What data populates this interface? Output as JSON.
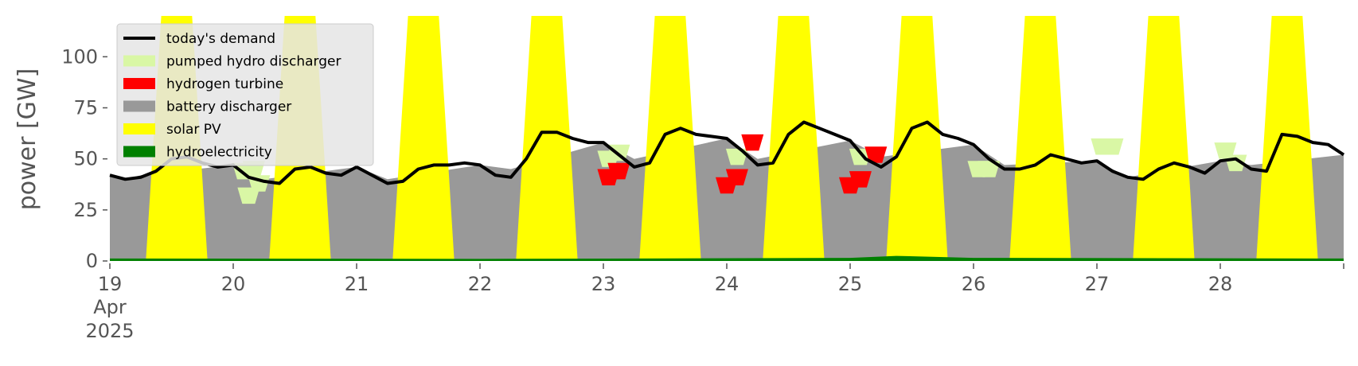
{
  "chart_data": {
    "type": "area",
    "title": "",
    "xlabel": "",
    "ylabel": "power [GW]",
    "ylim": [
      0,
      120
    ],
    "xlim": [
      "2025-04-19 00:00",
      "2025-04-29 00:00"
    ],
    "y_ticks": [
      "0",
      "25",
      "50",
      "75",
      "100"
    ],
    "x_ticks": [
      {
        "label": "19",
        "sub": [
          "Apr",
          "2025"
        ],
        "day": 0
      },
      {
        "label": "20",
        "day": 1
      },
      {
        "label": "21",
        "day": 2
      },
      {
        "label": "22",
        "day": 3
      },
      {
        "label": "23",
        "day": 4
      },
      {
        "label": "24",
        "day": 5
      },
      {
        "label": "25",
        "day": 6
      },
      {
        "label": "26",
        "day": 7
      },
      {
        "label": "27",
        "day": 8
      },
      {
        "label": "28",
        "day": 9
      }
    ],
    "grid": false,
    "legend_position": "top-left",
    "legend": [
      {
        "label": "today's demand",
        "kind": "line",
        "color": "#000000"
      },
      {
        "label": "pumped hydro discharger",
        "kind": "patch",
        "color": "#d9f7a5"
      },
      {
        "label": "hydrogen turbine",
        "kind": "patch",
        "color": "#ff0000"
      },
      {
        "label": "battery discharger",
        "kind": "patch",
        "color": "#999999"
      },
      {
        "label": "solar PV",
        "kind": "patch",
        "color": "#ffff00"
      },
      {
        "label": "hydroelectricity",
        "kind": "patch",
        "color": "#008000"
      }
    ],
    "series": [
      {
        "name": "today's demand",
        "color": "#000000",
        "x": [
          "2025-04-19 00:00",
          "2025-04-19 03:00",
          "2025-04-19 06:00",
          "2025-04-19 09:00",
          "2025-04-19 12:00",
          "2025-04-19 15:00",
          "2025-04-19 18:00",
          "2025-04-19 21:00",
          "2025-04-20 00:00",
          "2025-04-20 03:00",
          "2025-04-20 06:00",
          "2025-04-20 09:00",
          "2025-04-20 12:00",
          "2025-04-20 15:00",
          "2025-04-20 18:00",
          "2025-04-20 21:00",
          "2025-04-21 00:00",
          "2025-04-21 03:00",
          "2025-04-21 06:00",
          "2025-04-21 09:00",
          "2025-04-21 12:00",
          "2025-04-21 15:00",
          "2025-04-21 18:00",
          "2025-04-21 21:00",
          "2025-04-22 00:00",
          "2025-04-22 03:00",
          "2025-04-22 06:00",
          "2025-04-22 09:00",
          "2025-04-22 12:00",
          "2025-04-22 15:00",
          "2025-04-22 18:00",
          "2025-04-22 21:00",
          "2025-04-23 00:00",
          "2025-04-23 03:00",
          "2025-04-23 06:00",
          "2025-04-23 09:00",
          "2025-04-23 12:00",
          "2025-04-23 15:00",
          "2025-04-23 18:00",
          "2025-04-23 21:00",
          "2025-04-24 00:00",
          "2025-04-24 03:00",
          "2025-04-24 06:00",
          "2025-04-24 09:00",
          "2025-04-24 12:00",
          "2025-04-24 15:00",
          "2025-04-24 18:00",
          "2025-04-24 21:00",
          "2025-04-25 00:00",
          "2025-04-25 03:00",
          "2025-04-25 06:00",
          "2025-04-25 09:00",
          "2025-04-25 12:00",
          "2025-04-25 15:00",
          "2025-04-25 18:00",
          "2025-04-25 21:00",
          "2025-04-26 00:00",
          "2025-04-26 03:00",
          "2025-04-26 06:00",
          "2025-04-26 09:00",
          "2025-04-26 12:00",
          "2025-04-26 15:00",
          "2025-04-26 18:00",
          "2025-04-26 21:00",
          "2025-04-27 00:00",
          "2025-04-27 03:00",
          "2025-04-27 06:00",
          "2025-04-27 09:00",
          "2025-04-27 12:00",
          "2025-04-27 15:00",
          "2025-04-27 18:00",
          "2025-04-27 21:00",
          "2025-04-28 00:00",
          "2025-04-28 03:00",
          "2025-04-28 06:00",
          "2025-04-28 09:00",
          "2025-04-28 12:00",
          "2025-04-28 15:00",
          "2025-04-28 18:00",
          "2025-04-28 21:00",
          "2025-04-29 00:00"
        ],
        "y": [
          42,
          40,
          41,
          44,
          50,
          51,
          48,
          46,
          47,
          41,
          39,
          38,
          45,
          46,
          43,
          42,
          46,
          42,
          38,
          39,
          45,
          47,
          47,
          48,
          47,
          42,
          41,
          50,
          63,
          63,
          60,
          58,
          58,
          52,
          46,
          48,
          62,
          65,
          62,
          61,
          60,
          54,
          47,
          48,
          62,
          68,
          65,
          62,
          59,
          50,
          46,
          51,
          65,
          68,
          62,
          60,
          57,
          50,
          45,
          45,
          47,
          52,
          50,
          48,
          49,
          44,
          41,
          40,
          45,
          48,
          46,
          43,
          49,
          50,
          45,
          44,
          62,
          61,
          58,
          57,
          52
        ]
      },
      {
        "name": "solar PV",
        "color": "#ffff00",
        "x": [
          "2025-04-19 07:00",
          "2025-04-19 08:00",
          "2025-04-19 10:00",
          "2025-04-19 16:00",
          "2025-04-19 18:00",
          "2025-04-19 19:00",
          "2025-04-20 07:00",
          "2025-04-20 08:00",
          "2025-04-20 10:00",
          "2025-04-20 16:00",
          "2025-04-20 18:00",
          "2025-04-20 19:00",
          "2025-04-21 07:00",
          "2025-04-21 08:00",
          "2025-04-21 10:00",
          "2025-04-21 16:00",
          "2025-04-21 18:00",
          "2025-04-21 19:00",
          "2025-04-22 07:00",
          "2025-04-22 08:00",
          "2025-04-22 10:00",
          "2025-04-22 16:00",
          "2025-04-22 18:00",
          "2025-04-22 19:00",
          "2025-04-23 07:00",
          "2025-04-23 08:00",
          "2025-04-23 10:00",
          "2025-04-23 16:00",
          "2025-04-23 18:00",
          "2025-04-23 19:00",
          "2025-04-24 07:00",
          "2025-04-24 08:00",
          "2025-04-24 10:00",
          "2025-04-24 16:00",
          "2025-04-24 18:00",
          "2025-04-24 19:00",
          "2025-04-25 07:00",
          "2025-04-25 08:00",
          "2025-04-25 10:00",
          "2025-04-25 16:00",
          "2025-04-25 18:00",
          "2025-04-25 19:00",
          "2025-04-26 07:00",
          "2025-04-26 08:00",
          "2025-04-26 10:00",
          "2025-04-26 16:00",
          "2025-04-26 18:00",
          "2025-04-26 19:00",
          "2025-04-27 07:00",
          "2025-04-27 08:00",
          "2025-04-27 10:00",
          "2025-04-27 16:00",
          "2025-04-27 18:00",
          "2025-04-27 19:00",
          "2025-04-28 07:00",
          "2025-04-28 08:00",
          "2025-04-28 10:00",
          "2025-04-28 16:00",
          "2025-04-28 18:00",
          "2025-04-28 19:00"
        ],
        "y": [
          0,
          40,
          120,
          120,
          40,
          0,
          0,
          40,
          120,
          120,
          40,
          0,
          0,
          40,
          120,
          120,
          40,
          0,
          0,
          40,
          120,
          120,
          40,
          0,
          0,
          40,
          120,
          120,
          40,
          0,
          0,
          40,
          120,
          120,
          40,
          0,
          0,
          40,
          120,
          120,
          40,
          0,
          0,
          40,
          120,
          120,
          40,
          0,
          0,
          40,
          120,
          120,
          40,
          0,
          0,
          40,
          120,
          120,
          40,
          0
        ]
      },
      {
        "name": "pumped hydro discharger",
        "color": "#d9f7a5",
        "x": [
          "2025-04-20 02:00",
          "2025-04-20 03:00",
          "2025-04-20 04:00",
          "2025-04-20 05:00",
          "2025-04-23 01:00",
          "2025-04-23 03:00",
          "2025-04-24 02:00",
          "2025-04-25 02:00",
          "2025-04-26 01:00",
          "2025-04-26 03:00",
          "2025-04-27 01:00",
          "2025-04-27 03:00",
          "2025-04-28 01:00",
          "2025-04-28 03:00"
        ],
        "y": [
          40,
          28,
          41,
          34,
          46,
          49,
          47,
          47,
          41,
          41,
          52,
          52,
          50,
          44
        ]
      },
      {
        "name": "hydrogen turbine",
        "color": "#ff0000",
        "x": [
          "2025-04-23 01:00",
          "2025-04-23 03:00",
          "2025-04-24 00:00",
          "2025-04-24 02:00",
          "2025-04-24 05:00",
          "2025-04-25 00:00",
          "2025-04-25 02:00",
          "2025-04-25 05:00"
        ],
        "y": [
          37,
          40,
          33,
          37,
          54,
          33,
          36,
          48
        ]
      },
      {
        "name": "battery discharger",
        "color": "#999999",
        "x": [
          "2025-04-19 00:00",
          "2025-04-19 03:00",
          "2025-04-19 06:00",
          "2025-04-20 00:00",
          "2025-04-20 06:00",
          "2025-04-21 00:00",
          "2025-04-21 06:00",
          "2025-04-22 00:00",
          "2025-04-22 06:00",
          "2025-04-23 00:00",
          "2025-04-23 06:00",
          "2025-04-24 00:00",
          "2025-04-24 06:00",
          "2025-04-25 00:00",
          "2025-04-25 06:00",
          "2025-04-26 00:00",
          "2025-04-26 06:00",
          "2025-04-27 00:00",
          "2025-04-27 06:00",
          "2025-04-28 00:00",
          "2025-04-28 06:00",
          "2025-04-29 00:00"
        ],
        "y": [
          42,
          40,
          42,
          47,
          40,
          46,
          40,
          47,
          45,
          58,
          50,
          60,
          50,
          59,
          51,
          57,
          47,
          49,
          41,
          49,
          47,
          52
        ]
      },
      {
        "name": "hydroelectricity",
        "color": "#008000",
        "x": [
          "2025-04-19 00:00",
          "2025-04-22 00:00",
          "2025-04-25 00:00",
          "2025-04-25 09:00",
          "2025-04-26 00:00",
          "2025-04-29 00:00"
        ],
        "y": [
          1.2,
          1.0,
          1.5,
          2.5,
          1.5,
          1.2
        ]
      }
    ]
  }
}
